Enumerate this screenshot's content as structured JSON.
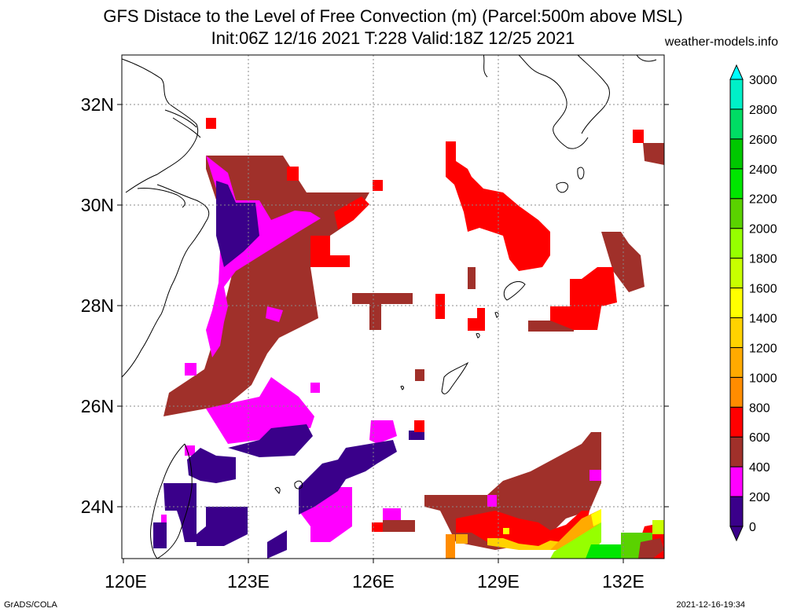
{
  "header": {
    "title_line1": "GFS Distace to the Level of Free Convection (m) (Parcel:500m above MSL)",
    "title_line2": "Init:06Z 12/16 2021 T:228 Valid:18Z 12/25 2021",
    "site": "weather-models.info"
  },
  "map": {
    "lat_labels": [
      "32N",
      "30N",
      "28N",
      "26N",
      "24N"
    ],
    "lon_labels": [
      "120E",
      "123E",
      "126E",
      "129E",
      "132E"
    ]
  },
  "legend": {
    "labels": [
      "0",
      "200",
      "400",
      "600",
      "800",
      "1000",
      "1200",
      "1400",
      "1600",
      "1800",
      "2000",
      "2200",
      "2400",
      "2600",
      "2800",
      "3000"
    ],
    "colors": {
      "0-200": "#3a008a",
      "200-400": "#ff00ff",
      "400-600": "#a0302a",
      "600-800": "#ff0000",
      "800-1000": "#ff8c00",
      "1000-1200": "#ffaa00",
      "1200-1400": "#ffd200",
      "1400-1600": "#ffff00",
      "1600-1800": "#c8ff00",
      "1800-2000": "#96ff00",
      "2000-2200": "#5ad200",
      "2200-2400": "#00e600",
      "2400-2600": "#00c800",
      "2600-2800": "#00dc64",
      "2800-3000": "#00f0c8",
      "3000+": "#00ffff"
    }
  },
  "footer": {
    "left": "GrADS/COLA",
    "right": "2021-12-16-19:34"
  }
}
